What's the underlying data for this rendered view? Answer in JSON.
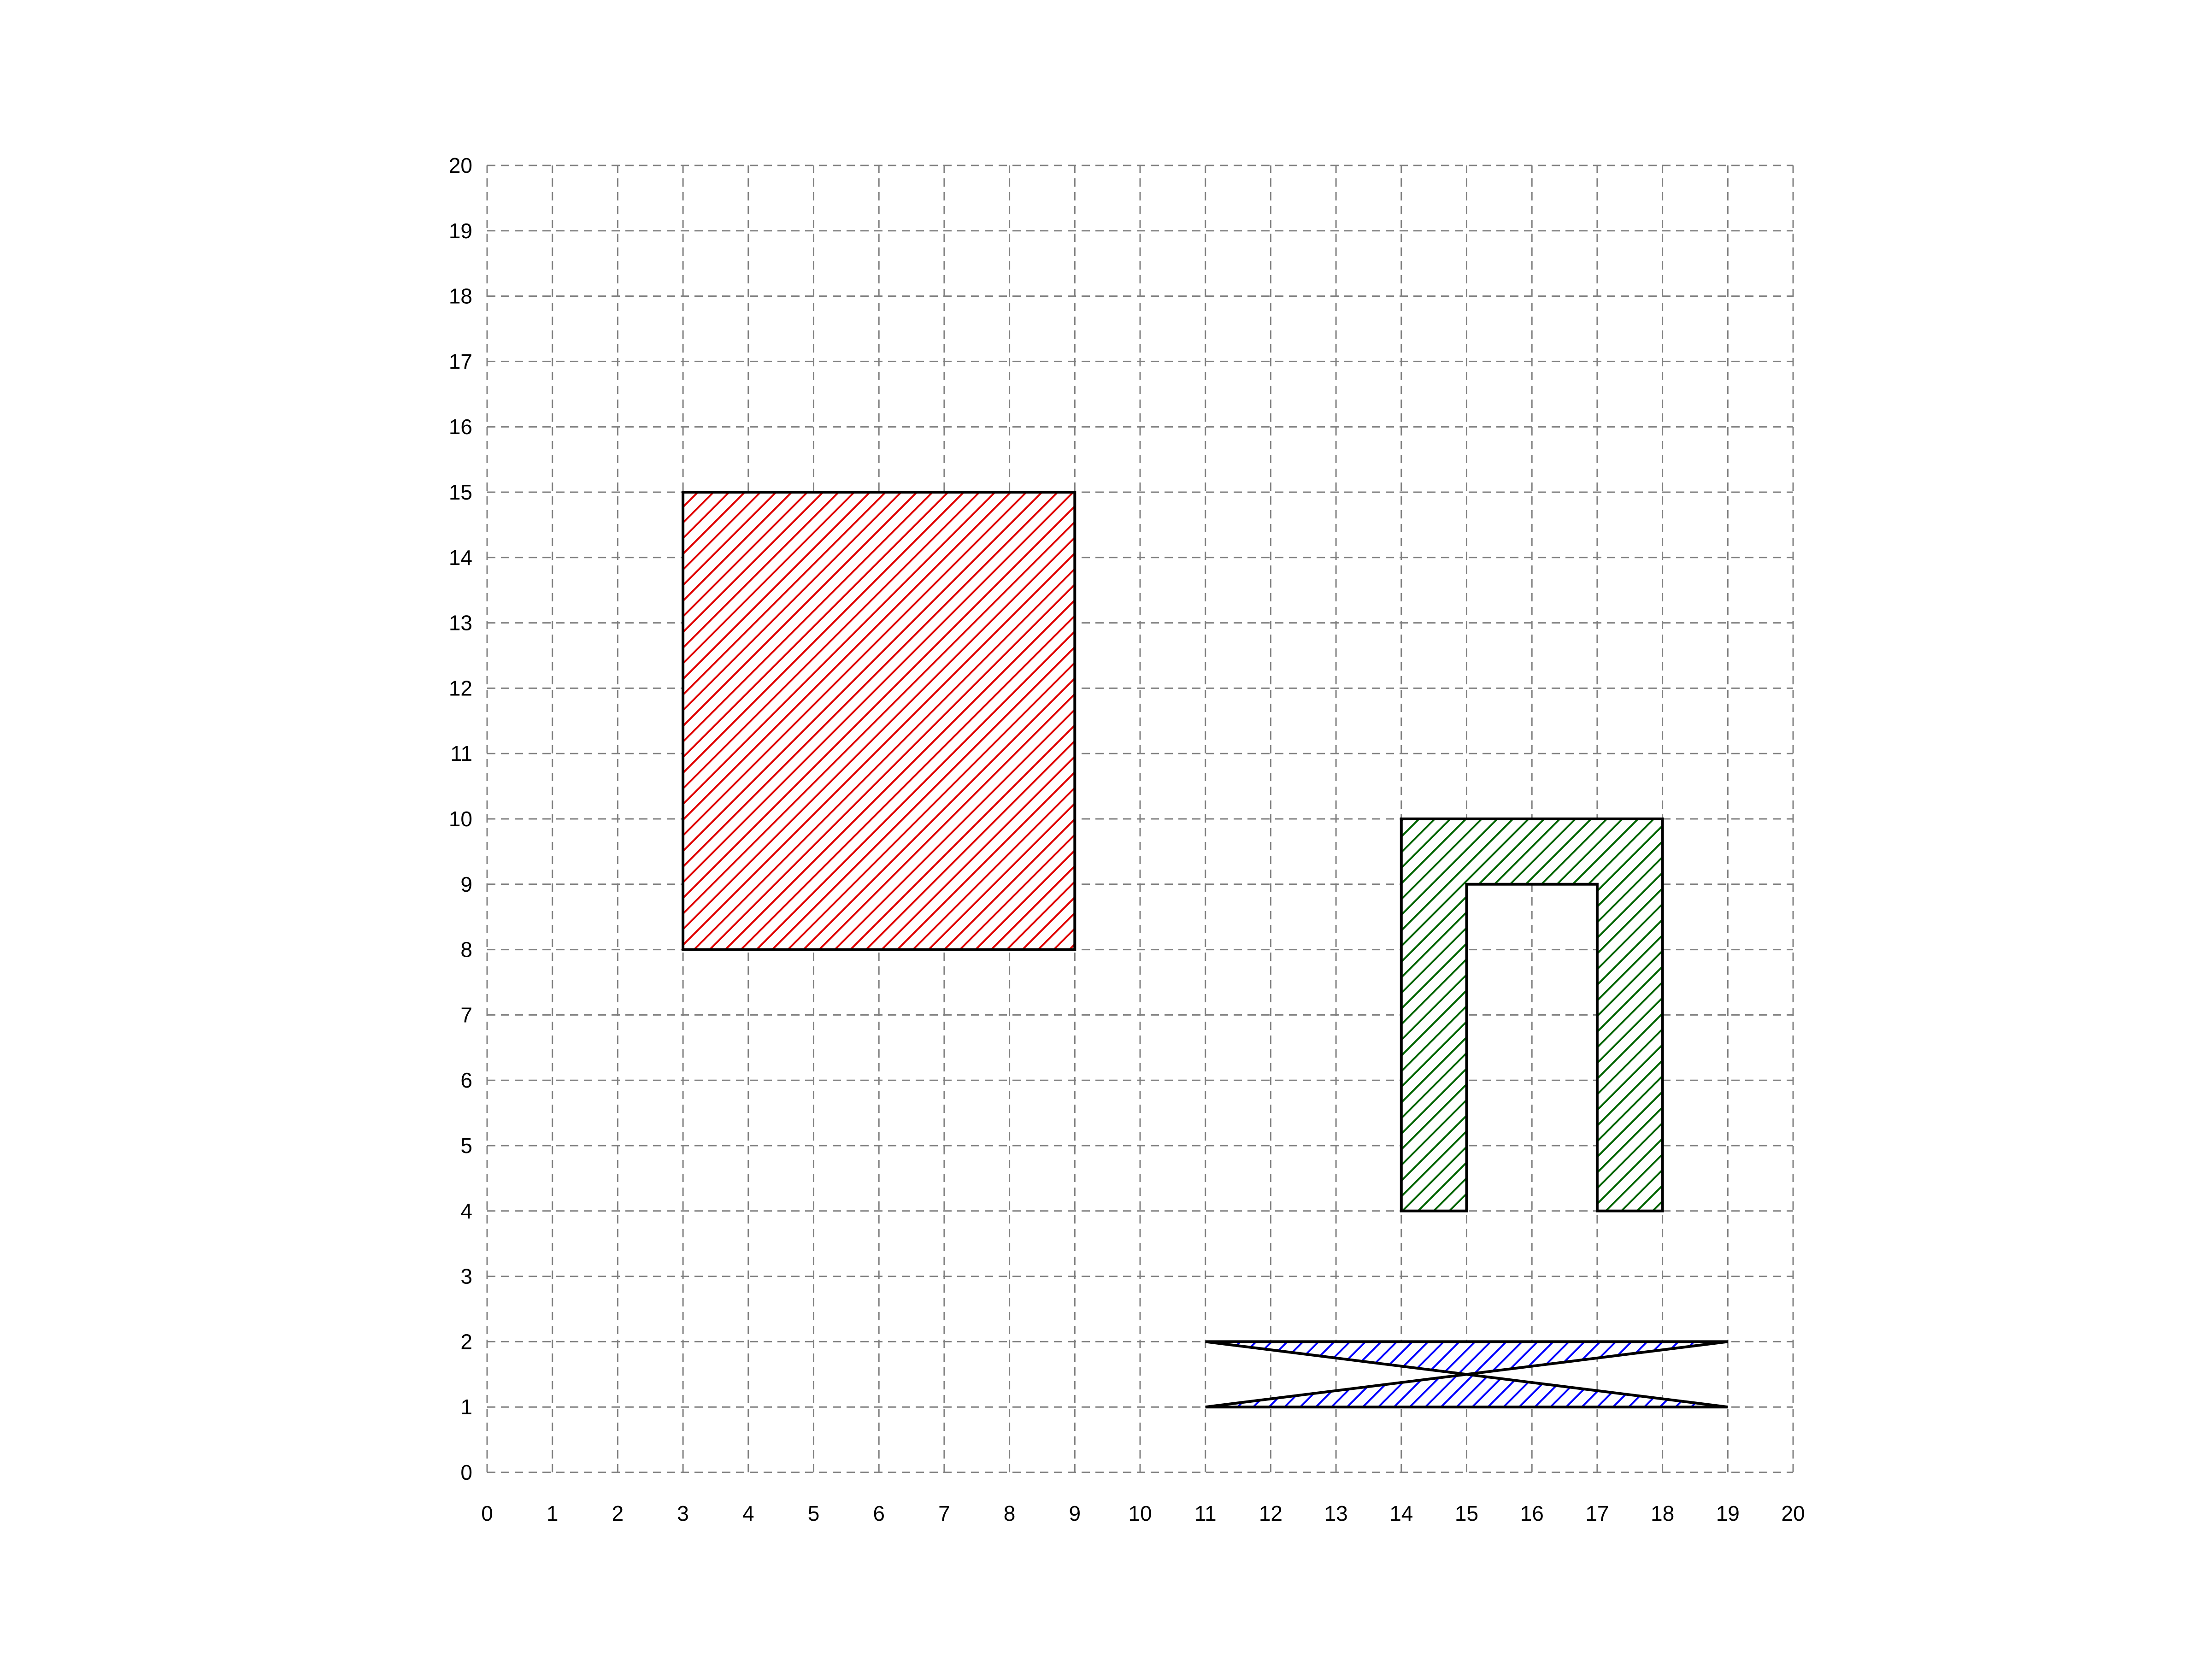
{
  "chart_data": {
    "type": "polygon-grid",
    "xlim": [
      0,
      20
    ],
    "ylim": [
      0,
      20
    ],
    "grid": true,
    "grid_style": "dashed",
    "x_ticks": [
      "0",
      "1",
      "2",
      "3",
      "4",
      "5",
      "6",
      "7",
      "8",
      "9",
      "10",
      "11",
      "12",
      "13",
      "14",
      "15",
      "16",
      "17",
      "18",
      "19",
      "20"
    ],
    "y_ticks": [
      "0",
      "1",
      "2",
      "3",
      "4",
      "5",
      "6",
      "7",
      "8",
      "9",
      "10",
      "11",
      "12",
      "13",
      "14",
      "15",
      "16",
      "17",
      "18",
      "19",
      "20"
    ],
    "shapes": [
      {
        "id": "red-rectangle",
        "color": "#e00000",
        "fill": "diagonal-hatch",
        "points": [
          [
            3,
            8
          ],
          [
            9,
            8
          ],
          [
            9,
            15
          ],
          [
            3,
            15
          ]
        ]
      },
      {
        "id": "green-u-shape",
        "color": "#006400",
        "fill": "diagonal-hatch",
        "points": [
          [
            14,
            4
          ],
          [
            15,
            4
          ],
          [
            15,
            9
          ],
          [
            17,
            9
          ],
          [
            17,
            4
          ],
          [
            18,
            4
          ],
          [
            18,
            10
          ],
          [
            14,
            10
          ]
        ]
      },
      {
        "id": "blue-bowtie",
        "color": "#0000ff",
        "fill": "diagonal-hatch",
        "points": [
          [
            11,
            2
          ],
          [
            19,
            2
          ],
          [
            11,
            1
          ],
          [
            19,
            1
          ]
        ]
      }
    ]
  }
}
